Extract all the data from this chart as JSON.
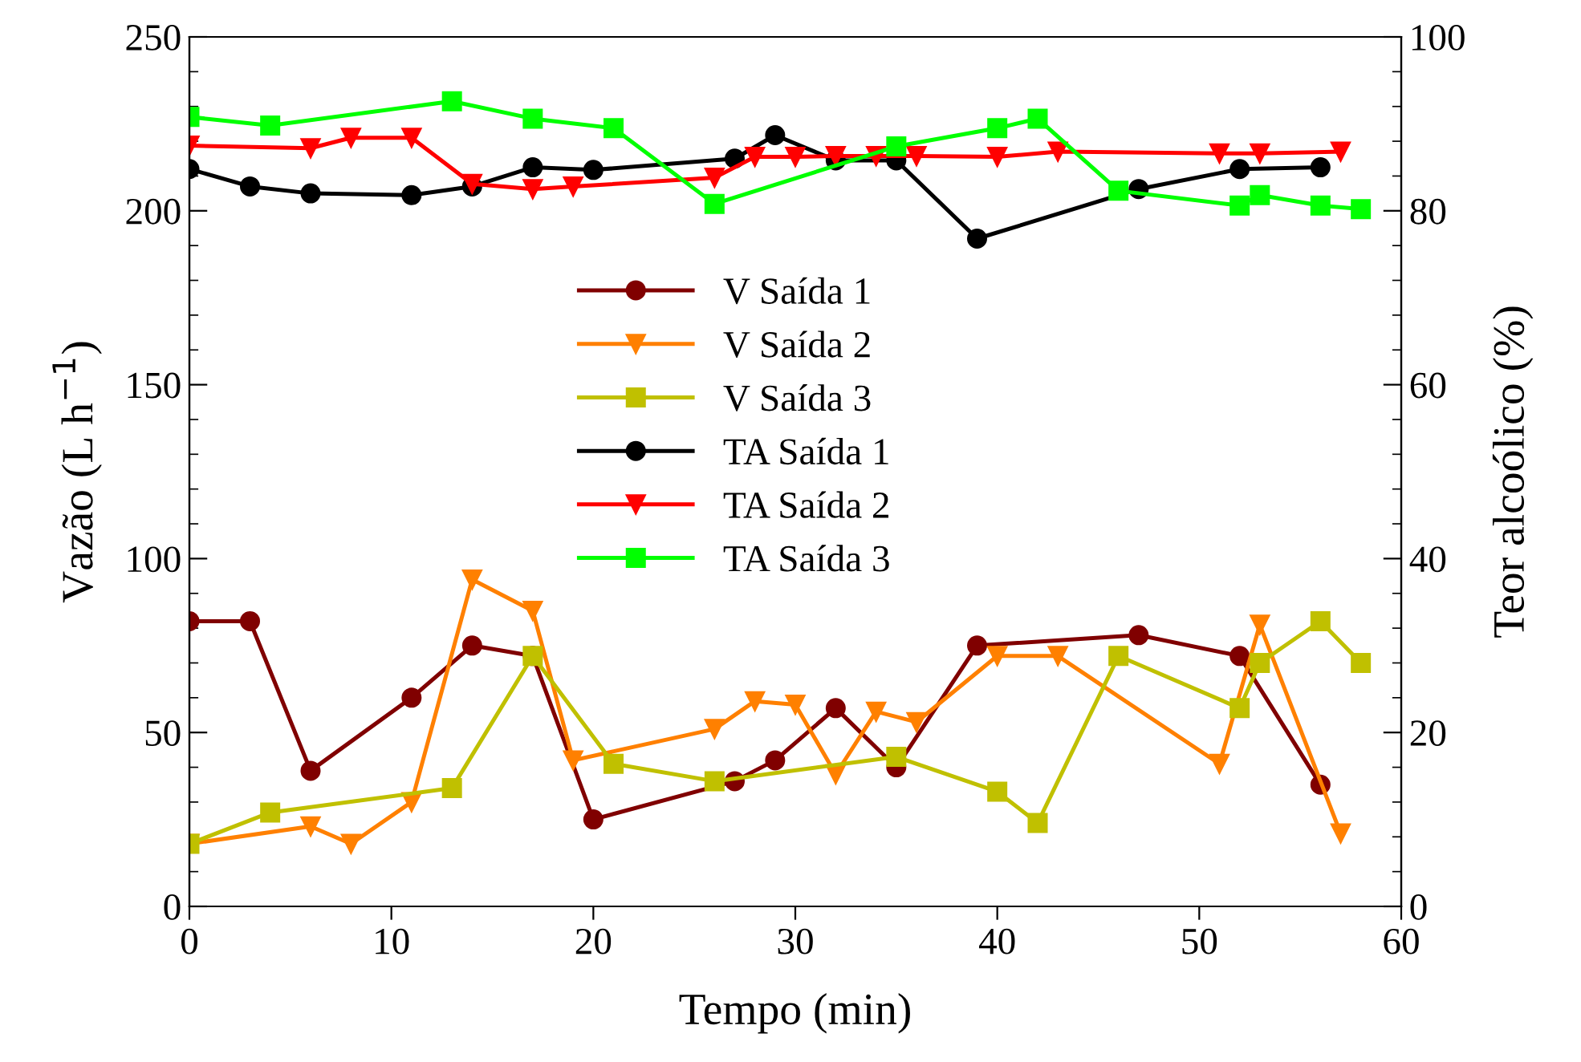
{
  "chart_data": {
    "type": "line",
    "xlabel": "Tempo (min)",
    "ylabel": "Vazão (L h$^{−1}$)",
    "y2label": "Teor alcoólico (%)",
    "xlim": [
      0,
      60
    ],
    "xticks": [
      0,
      10,
      20,
      30,
      40,
      50,
      60
    ],
    "ylim": [
      0,
      250
    ],
    "yticks": [
      0,
      50,
      100,
      150,
      200,
      250
    ],
    "y2lim": [
      0,
      100
    ],
    "y2ticks": [
      0,
      20,
      40,
      60,
      80,
      100
    ],
    "grid": false,
    "legend": "center",
    "line_style": "solid",
    "series": [
      {
        "name": "V Saída 1",
        "color": "#800000",
        "marker": "circle",
        "x": [
          0,
          3,
          6,
          11,
          14,
          17,
          20,
          27,
          29,
          32,
          35,
          39,
          47,
          52,
          56
        ],
        "values": [
          82,
          82,
          39,
          60,
          75,
          72,
          25,
          36,
          42,
          57,
          40,
          75,
          78,
          72,
          35
        ]
      },
      {
        "name": "V Saída 2",
        "color": "#ff8000",
        "marker": "triangle",
        "x": [
          0,
          6,
          8,
          11,
          14,
          17,
          19,
          26,
          28,
          30,
          32,
          34,
          36,
          40,
          43,
          51,
          53,
          57
        ],
        "values": [
          18,
          23,
          18,
          30,
          94,
          85,
          42,
          51,
          59,
          58,
          38,
          56,
          53,
          72,
          72,
          41,
          81,
          21
        ]
      },
      {
        "name": "V Saída 3",
        "color": "#c0c000",
        "marker": "square",
        "x": [
          0,
          4,
          13,
          17,
          21,
          26,
          35,
          40,
          42,
          46,
          52,
          53,
          56,
          58
        ],
        "values": [
          18,
          27,
          34,
          72,
          41,
          36,
          43,
          33,
          24,
          72,
          57,
          70,
          82,
          70
        ]
      },
      {
        "name": "TA Saída 1",
        "color": "#000000",
        "marker": "circle",
        "axis": "y2",
        "x": [
          0,
          3,
          6,
          11,
          14,
          17,
          20,
          27,
          29,
          32,
          35,
          39,
          47,
          52,
          56
        ],
        "values": [
          84.8,
          82.8,
          82.0,
          81.8,
          82.8,
          85.0,
          84.7,
          86.0,
          88.7,
          85.8,
          85.8,
          76.8,
          82.5,
          84.8,
          85.0
        ]
      },
      {
        "name": "TA Saída 2",
        "color": "#ff0000",
        "marker": "triangle",
        "axis": "y2",
        "x": [
          0,
          6,
          8,
          11,
          14,
          17,
          19,
          26,
          28,
          30,
          32,
          34,
          36,
          40,
          43,
          51,
          53,
          57
        ],
        "values": [
          87.5,
          87.2,
          88.4,
          88.4,
          83.1,
          82.5,
          82.8,
          83.8,
          86.2,
          86.2,
          86.3,
          86.3,
          86.3,
          86.2,
          86.8,
          86.6,
          86.6,
          86.8
        ]
      },
      {
        "name": "TA Saída 3",
        "color": "#00ff00",
        "marker": "square",
        "axis": "y2",
        "x": [
          0,
          4,
          13,
          17,
          21,
          26,
          35,
          40,
          42,
          46,
          52,
          53,
          56,
          58
        ],
        "values": [
          90.8,
          89.8,
          92.6,
          90.6,
          89.5,
          80.8,
          87.4,
          89.5,
          90.6,
          82.3,
          80.6,
          81.8,
          80.6,
          80.2
        ]
      }
    ]
  }
}
